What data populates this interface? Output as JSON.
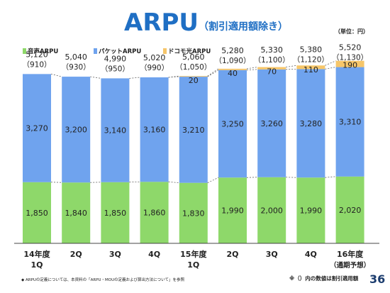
{
  "header": {
    "title": "ARPU",
    "subtitle": "（割引適用額除き）",
    "unit": "（単位：円）"
  },
  "footer": {
    "footnote": "◆ ARPUの定義については、本資料の「ARPU・MOUの定義および算出方法について」を参照",
    "note": "※（）内の数値は割引適用額",
    "page_number": "36"
  },
  "colors": {
    "voice": "#8ed86a",
    "packet": "#6fa3ee",
    "hikari": "#f6c66a",
    "axis": "#444444",
    "label_text": "#222222"
  },
  "chart_data": {
    "type": "bar",
    "stacked": true,
    "categories": [
      [
        "14年度",
        "1Q"
      ],
      [
        "2Q"
      ],
      [
        "3Q"
      ],
      [
        "4Q"
      ],
      [
        "15年度",
        "1Q"
      ],
      [
        "2Q"
      ],
      [
        "3Q"
      ],
      [
        "4Q"
      ],
      [
        "16年度",
        "（通期予想）"
      ]
    ],
    "series": [
      {
        "name": "音声ARPU",
        "color": "#8ed86a",
        "values": [
          1850,
          1840,
          1850,
          1860,
          1830,
          1990,
          2000,
          1990,
          2020
        ]
      },
      {
        "name": "パケットARPU",
        "color": "#6fa3ee",
        "values": [
          3270,
          3200,
          3140,
          3160,
          3210,
          3250,
          3260,
          3280,
          3310
        ]
      },
      {
        "name": "ドコモ光ARPU",
        "color": "#f6c66a",
        "values": [
          0,
          0,
          0,
          0,
          20,
          40,
          70,
          110,
          190
        ]
      }
    ],
    "series_labels": [
      [
        "1,850",
        "1,840",
        "1,850",
        "1,860",
        "1,830",
        "1,990",
        "2,000",
        "1,990",
        "2,020"
      ],
      [
        "3,270",
        "3,200",
        "3,140",
        "3,160",
        "3,210",
        "3,250",
        "3,260",
        "3,280",
        "3,310"
      ],
      [
        "",
        "",
        "",
        "",
        "20",
        "40",
        "70",
        "110",
        "190"
      ]
    ],
    "totals": [
      "5,120",
      "5,040",
      "4,990",
      "5,020",
      "5,060",
      "5,280",
      "5,330",
      "5,380",
      "5,520"
    ],
    "discounts": [
      "（910）",
      "（930）",
      "（950）",
      "（990）",
      "（1,050）",
      "（1,090）",
      "（1,100）",
      "（1,120）",
      "（1,130）"
    ],
    "ylim": [
      0,
      5900
    ],
    "legend_position": "top-left"
  }
}
